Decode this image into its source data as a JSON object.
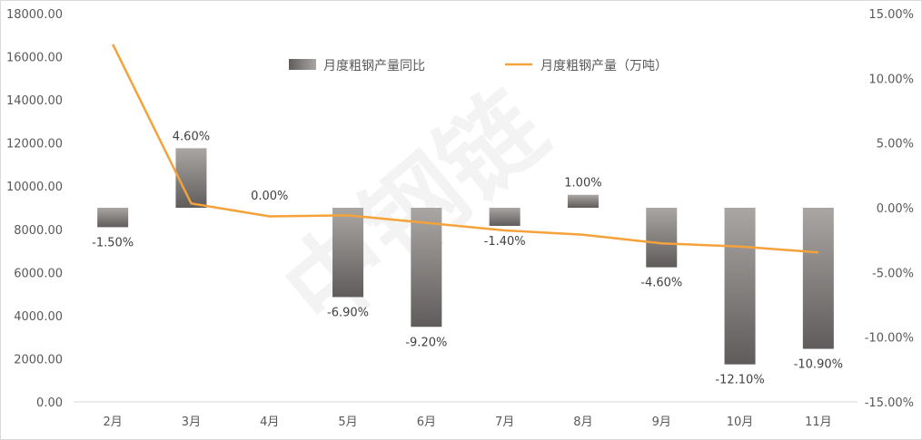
{
  "chart_data": {
    "type": "bar",
    "categories": [
      "2月",
      "3月",
      "4月",
      "5月",
      "6月",
      "7月",
      "8月",
      "9月",
      "10月",
      "11月"
    ],
    "series": [
      {
        "name": "月度粗钢产量同比",
        "type": "bar",
        "axis": "right",
        "values": [
          -1.5,
          4.6,
          0.0,
          -6.9,
          -9.2,
          -1.4,
          1.0,
          -4.6,
          -12.1,
          -10.9
        ],
        "labels": [
          "-1.50%",
          "4.60%",
          "0.00%",
          "-6.90%",
          "-9.20%",
          "-1.40%",
          "1.00%",
          "-4.60%",
          "-12.10%",
          "-10.90%"
        ],
        "color": "#6b6867"
      },
      {
        "name": "月度粗钢产量（万吨）",
        "type": "line",
        "axis": "left",
        "values": [
          16580,
          9200,
          8600,
          8650,
          8300,
          7950,
          7750,
          7350,
          7200,
          6930
        ],
        "color": "#f5a23a"
      }
    ],
    "y_left": {
      "min": 0,
      "max": 18000,
      "ticks": [
        0,
        2000,
        4000,
        6000,
        8000,
        10000,
        12000,
        14000,
        16000,
        18000
      ],
      "tick_labels": [
        "0.00",
        "2000.00",
        "4000.00",
        "6000.00",
        "8000.00",
        "10000.00",
        "12000.00",
        "14000.00",
        "16000.00",
        "18000.00"
      ]
    },
    "y_right": {
      "min": -15,
      "max": 15,
      "ticks": [
        -15,
        -10,
        -5,
        0,
        5,
        10,
        15
      ],
      "tick_labels": [
        "-15.00%",
        "-10.00%",
        "-5.00%",
        "0.00%",
        "5.00%",
        "10.00%",
        "15.00%"
      ]
    },
    "legend": {
      "position": "top-center"
    },
    "grid": false,
    "watermark": "中钢链"
  }
}
